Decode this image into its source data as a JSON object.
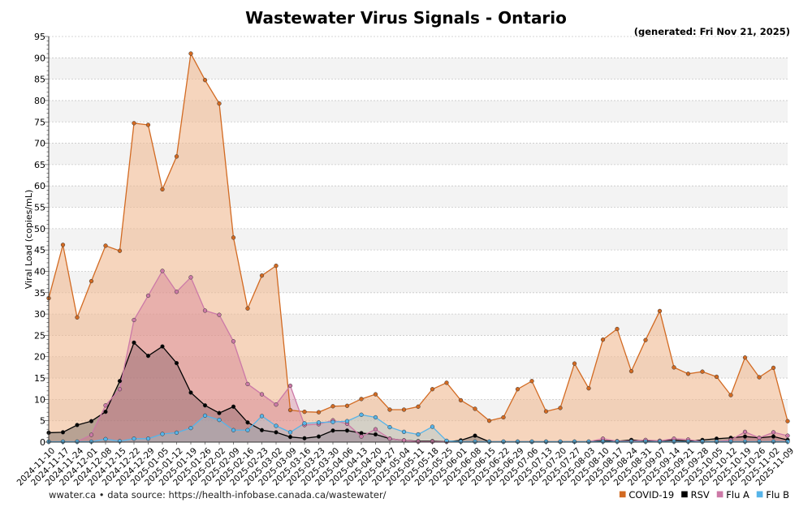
{
  "chart_data": {
    "type": "area",
    "title": "Wastewater Virus Signals - Ontario",
    "subtitle": "(generated: Fri Nov 21, 2025)",
    "footer": "wwater.ca • data source: https://health-infobase.canada.ca/wastewater/",
    "ylabel": "Viral Load (copies/mL)",
    "xlabel": "",
    "ylim": [
      0,
      95
    ],
    "yticks": [
      0,
      5,
      10,
      15,
      20,
      25,
      30,
      35,
      40,
      45,
      50,
      55,
      60,
      65,
      70,
      75,
      80,
      85,
      90,
      95
    ],
    "categories": [
      "2024-11-10",
      "2024-11-17",
      "2024-11-24",
      "2024-12-01",
      "2024-12-08",
      "2024-12-15",
      "2024-12-22",
      "2024-12-29",
      "2025-01-05",
      "2025-01-12",
      "2025-01-19",
      "2025-01-26",
      "2025-02-02",
      "2025-02-09",
      "2025-02-16",
      "2025-02-23",
      "2025-03-02",
      "2025-03-09",
      "2025-03-16",
      "2025-03-23",
      "2025-03-30",
      "2025-04-06",
      "2025-04-13",
      "2025-04-20",
      "2025-04-27",
      "2025-05-04",
      "2025-05-11",
      "2025-05-18",
      "2025-05-25",
      "2025-06-01",
      "2025-06-08",
      "2025-06-15",
      "2025-06-22",
      "2025-06-29",
      "2025-07-06",
      "2025-07-13",
      "2025-07-20",
      "2025-07-27",
      "2025-08-03",
      "2025-08-10",
      "2025-08-17",
      "2025-08-24",
      "2025-08-31",
      "2025-09-07",
      "2025-09-14",
      "2025-09-21",
      "2025-09-28",
      "2025-10-05",
      "2025-10-12",
      "2025-10-19",
      "2025-10-26",
      "2025-11-02",
      "2025-11-09"
    ],
    "series": [
      {
        "name": "COVID-19",
        "color": "#d26a22",
        "fill": "rgba(240,185,145,0.6)",
        "values": [
          33.7,
          46.2,
          29.2,
          37.7,
          46,
          44.8,
          74.7,
          74.3,
          59.2,
          66.9,
          91,
          84.8,
          79.3,
          47.9,
          31.3,
          39,
          41.3,
          7.5,
          7.1,
          7,
          8.4,
          8.5,
          10.1,
          11.2,
          7.6,
          7.6,
          8.3,
          12.4,
          13.9,
          9.8,
          7.8,
          5,
          5.8,
          12.4,
          14.3,
          7.2,
          8,
          18.4,
          12.6,
          24,
          26.5,
          16.6,
          23.9,
          30.7,
          17.5,
          16,
          16.5,
          15.3,
          11,
          19.8,
          15.2,
          17.4,
          4.9
        ]
      },
      {
        "name": "RSV",
        "color": "#000000",
        "fill": "rgba(70,70,70,0.35)",
        "values": [
          2.2,
          2.3,
          4,
          4.9,
          7.1,
          14.3,
          23.3,
          20.2,
          22.4,
          18.5,
          11.6,
          8.6,
          6.8,
          8.3,
          4.6,
          2.8,
          2.3,
          1.2,
          0.9,
          1.3,
          2.7,
          2.7,
          2.1,
          1.8,
          0.8,
          0.4,
          0.2,
          0.2,
          0.1,
          0.4,
          1.5,
          0.1,
          0.1,
          0.1,
          0.1,
          0.1,
          0.1,
          0.1,
          0.1,
          0.3,
          0.2,
          0.5,
          0.3,
          0.3,
          0.5,
          0.2,
          0.5,
          0.8,
          1,
          1.3,
          1,
          1.3,
          0.5
        ]
      },
      {
        "name": "Flu A",
        "color": "#cc79a7",
        "fill": "rgba(205,110,140,0.35)",
        "values": [
          0.1,
          0.1,
          0.1,
          1.7,
          8.6,
          12.4,
          28.6,
          34.3,
          40.1,
          35.2,
          38.6,
          30.8,
          29.8,
          23.6,
          13.6,
          11.2,
          8.8,
          13.2,
          4,
          4.2,
          5.1,
          4.3,
          1.3,
          3,
          0.8,
          0.4,
          0.1,
          0.1,
          0.1,
          0.1,
          0.1,
          0.1,
          0.1,
          0.1,
          0.1,
          0.1,
          0.1,
          0.1,
          0.1,
          0.8,
          0.2,
          0.2,
          0.5,
          0.3,
          0.8,
          0.6,
          0.1,
          0.1,
          0.5,
          2.4,
          1,
          2.3,
          1.5
        ]
      },
      {
        "name": "Flu B",
        "color": "#56b4e9",
        "fill": "rgba(150,200,215,0.35)",
        "values": [
          0.1,
          0.1,
          0.1,
          0.1,
          0.7,
          0.2,
          0.8,
          0.8,
          1.9,
          2.2,
          3.3,
          6.2,
          5.2,
          2.8,
          2.8,
          6.1,
          3.8,
          2.3,
          4.4,
          4.6,
          4.7,
          4.9,
          6.4,
          5.8,
          3.5,
          2.4,
          1.8,
          3.6,
          0.3,
          0.1,
          0.1,
          0.1,
          0.1,
          0.1,
          0.1,
          0.1,
          0.1,
          0.1,
          0.1,
          0.1,
          0.1,
          0.1,
          0.1,
          0.1,
          0.1,
          0.1,
          0.1,
          0.1,
          0.1,
          0.1,
          0.1,
          0.1,
          0.1
        ]
      }
    ]
  }
}
